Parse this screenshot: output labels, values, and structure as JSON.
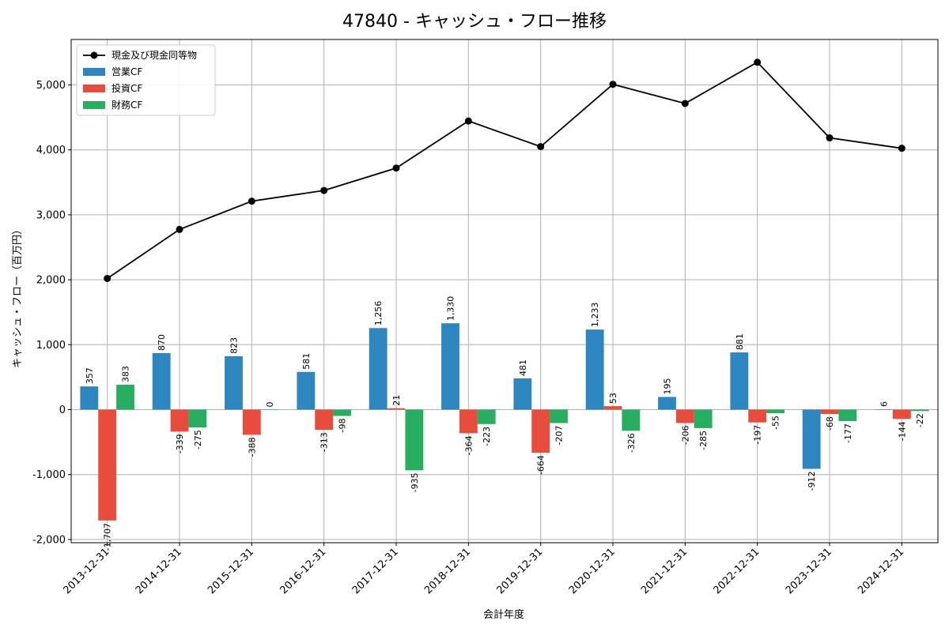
{
  "chart_data": {
    "type": "bar",
    "title": "47840 - キャッシュ・フロー推移",
    "xlabel": "会計年度",
    "ylabel": "キャッシュ・フロー（百万円）",
    "ylim": [
      -2050,
      5700
    ],
    "yticks": [
      -2000,
      -1000,
      0,
      1000,
      2000,
      3000,
      4000,
      5000
    ],
    "ytick_labels": [
      "-2,000",
      "-1,000",
      "0",
      "1,000",
      "2,000",
      "3,000",
      "4,000",
      "5,000"
    ],
    "grid": true,
    "legend_position": "top-left",
    "categories": [
      "2013-12-31",
      "2014-12-31",
      "2015-12-31",
      "2016-12-31",
      "2017-12-31",
      "2018-12-31",
      "2019-12-31",
      "2020-12-31",
      "2021-12-31",
      "2022-12-31",
      "2023-12-31",
      "2024-12-31"
    ],
    "series": [
      {
        "name": "営業CF",
        "kind": "bar",
        "color": "#2e86c1",
        "values": [
          357,
          870,
          823,
          581,
          1256,
          1330,
          481,
          1233,
          195,
          881,
          -912,
          6
        ],
        "labels": [
          "357",
          "870",
          "823",
          "581",
          "1,256",
          "1,330",
          "481",
          "1,233",
          "195",
          "881",
          "-912",
          "6"
        ]
      },
      {
        "name": "投資CF",
        "kind": "bar",
        "color": "#e74c3c",
        "values": [
          -1707,
          -339,
          -388,
          -313,
          21,
          -364,
          -664,
          53,
          -206,
          -197,
          -68,
          -144
        ],
        "labels": [
          "-1,707",
          "-339",
          "-388",
          "-313",
          "21",
          "-364",
          "-664",
          "53",
          "-206",
          "-197",
          "-68",
          "-144"
        ]
      },
      {
        "name": "財務CF",
        "kind": "bar",
        "color": "#27ae60",
        "values": [
          383,
          -275,
          0,
          -98,
          -935,
          -223,
          -207,
          -326,
          -285,
          -55,
          -177,
          -22
        ],
        "labels": [
          "383",
          "-275",
          "0",
          "-98",
          "-935",
          "-223",
          "-207",
          "-326",
          "-285",
          "-55",
          "-177",
          "-22"
        ]
      },
      {
        "name": "現金及び現金同等物",
        "kind": "line",
        "color": "#000000",
        "values": [
          2020,
          2775,
          3210,
          3375,
          3720,
          4445,
          4050,
          5010,
          4715,
          5350,
          4185,
          4025
        ]
      }
    ]
  }
}
